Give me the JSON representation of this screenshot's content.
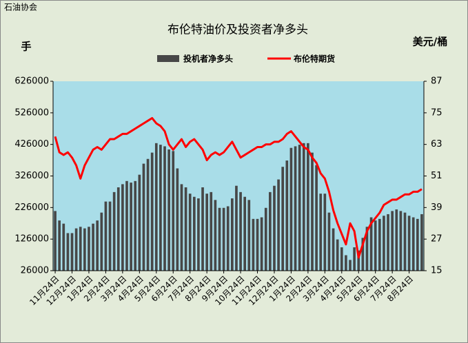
{
  "chart_data": {
    "type": "bar-line",
    "source": "石油协会",
    "title": "布伦特油价及投资者净多头",
    "y_label": "手",
    "y2_label": "美元/桶",
    "categories": [
      "11月24日",
      null,
      null,
      null,
      "12月24日",
      null,
      null,
      null,
      "1月24日",
      null,
      null,
      null,
      "2月24日",
      null,
      null,
      null,
      "3月24日",
      null,
      null,
      null,
      "4月24日",
      null,
      null,
      null,
      "5月24日",
      null,
      null,
      null,
      "6月24日",
      null,
      null,
      null,
      "7月24日",
      null,
      null,
      null,
      "8月24日",
      null,
      null,
      null,
      "9月24日",
      null,
      null,
      null,
      "10月24日",
      null,
      null,
      null,
      "11月24日",
      null,
      null,
      null,
      "12月24日",
      null,
      null,
      null,
      "1月24日",
      null,
      null,
      null,
      "2月24日",
      null,
      null,
      null,
      "3月24日",
      null,
      null,
      null,
      "4月24日",
      null,
      null,
      null,
      "5月24日",
      null,
      null,
      null,
      "6月24日",
      null,
      null,
      null,
      "7月24日",
      null,
      null,
      null,
      "8月24日",
      null,
      null,
      null
    ],
    "series": [
      {
        "name": "投机者净多头",
        "type": "bar",
        "color": "#474747",
        "values": [
          215000,
          185000,
          175000,
          145000,
          145000,
          160000,
          165000,
          160000,
          165000,
          175000,
          185000,
          210000,
          245000,
          245000,
          275000,
          290000,
          300000,
          310000,
          305000,
          310000,
          330000,
          365000,
          380000,
          400000,
          430000,
          425000,
          420000,
          410000,
          405000,
          350000,
          300000,
          290000,
          270000,
          260000,
          255000,
          290000,
          270000,
          275000,
          250000,
          225000,
          225000,
          230000,
          255000,
          295000,
          275000,
          260000,
          250000,
          190000,
          190000,
          195000,
          225000,
          275000,
          295000,
          315000,
          355000,
          375000,
          415000,
          420000,
          425000,
          430000,
          430000,
          400000,
          360000,
          270000,
          270000,
          210000,
          160000,
          125000,
          100000,
          75000,
          60000,
          100000,
          90000,
          130000,
          165000,
          195000,
          185000,
          190000,
          200000,
          205000,
          215000,
          220000,
          215000,
          210000,
          200000,
          195000,
          190000,
          205000
        ]
      },
      {
        "name": "布伦特期货",
        "type": "line",
        "axis": "y2",
        "color": "#ff0000",
        "values": [
          66,
          60,
          59,
          60,
          58,
          55,
          50,
          55,
          58,
          61,
          62,
          61,
          63,
          65,
          65,
          66,
          67,
          67,
          68,
          69,
          70,
          71,
          72,
          73,
          71,
          70,
          68,
          63,
          61,
          63,
          65,
          62,
          64,
          65,
          63,
          61,
          57,
          59,
          60,
          59,
          60,
          62,
          64,
          61,
          58,
          59,
          60,
          61,
          62,
          62,
          63,
          63,
          64,
          64,
          65,
          67,
          68,
          66,
          64,
          62,
          61,
          58,
          56,
          52,
          50,
          45,
          38,
          33,
          29,
          25,
          33,
          30,
          20,
          25,
          30,
          33,
          35,
          37,
          40,
          41,
          42,
          42,
          43,
          44,
          44,
          45,
          45,
          46
        ]
      }
    ],
    "ylim": [
      26000,
      626000
    ],
    "yticks": [
      26000,
      126000,
      226000,
      326000,
      426000,
      526000,
      626000
    ],
    "y2lim": [
      15,
      87
    ],
    "y2ticks": [
      15,
      27,
      39,
      51,
      63,
      75,
      87
    ],
    "plot_color": "#a9dde8",
    "background": "#e3ebd9"
  }
}
